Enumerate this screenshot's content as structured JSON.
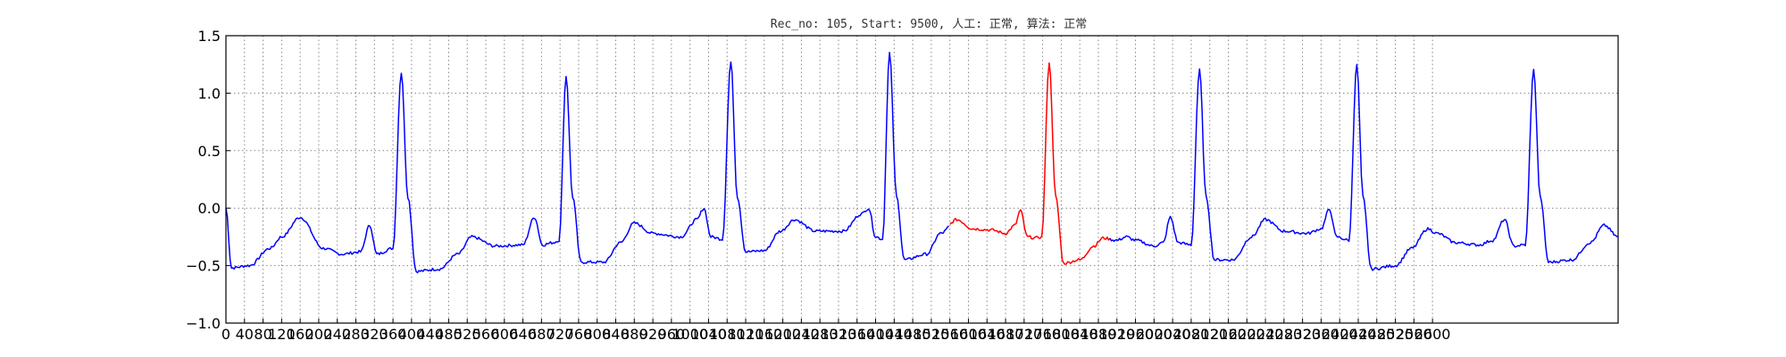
{
  "chart_data": {
    "type": "line",
    "title": "Rec_no: 105, Start: 9500, 人工: 正常, 算法: 正常",
    "xlabel": "",
    "ylabel": "",
    "xlim": [
      0,
      3000
    ],
    "ylim": [
      -1.0,
      1.5
    ],
    "grid": true,
    "yticks": [
      -1.0,
      -0.5,
      0.0,
      0.5,
      1.0,
      1.5
    ],
    "ytick_labels": [
      "−1.0",
      "−0.5",
      "0.0",
      "0.5",
      "1.0",
      "1.5"
    ],
    "xticks": [
      0,
      40,
      80,
      120,
      160,
      200,
      240,
      280,
      320,
      360,
      400,
      440,
      480,
      520,
      560,
      600,
      640,
      680,
      720,
      760,
      800,
      840,
      880,
      920,
      960,
      1000,
      1040,
      1080,
      1120,
      1160,
      1200,
      1240,
      1280,
      1320,
      1360,
      1400,
      1440,
      1480,
      1520,
      1560,
      1600,
      1640,
      1680,
      1720,
      1760,
      1800,
      1840,
      1880,
      1920,
      1960,
      2000,
      2040,
      2080,
      2120,
      2160,
      2200,
      2240,
      2280,
      2320,
      2360,
      2400,
      2440,
      2480,
      2520,
      2560,
      2600
    ],
    "xtick_labels": [
      "0",
      "40",
      "80",
      "120",
      "160",
      "200",
      "240",
      "280",
      "320",
      "360",
      "400",
      "440",
      "480",
      "520",
      "560",
      "600",
      "640",
      "680",
      "720",
      "760",
      "800",
      "840",
      "880",
      "920",
      "960",
      "1000",
      "1040",
      "1080",
      "1120",
      "1160",
      "1200",
      "1240",
      "1280",
      "1320",
      "1360",
      "1400",
      "1440",
      "1480",
      "1520",
      "1560",
      "1600",
      "1640",
      "1680",
      "1720",
      "1760",
      "1800",
      "1840",
      "1880",
      "1920",
      "1960",
      "2000",
      "2040",
      "2080",
      "2120",
      "2160",
      "2200",
      "2240",
      "2280",
      "2320",
      "2360",
      "2400",
      "2440",
      "2480",
      "2520",
      "2560",
      "2600"
    ],
    "colors": {
      "normal": "#0000ff",
      "highlight": "#ff0000",
      "grid": "#888888"
    },
    "beats": [
      {
        "x": 0,
        "y": 0.0
      },
      {
        "x": 12,
        "y": -0.52
      },
      {
        "x": 50,
        "y": -0.5
      },
      {
        "x": 95,
        "y": -0.35
      },
      {
        "x": 120,
        "y": -0.25
      },
      {
        "x": 160,
        "y": -0.08
      },
      {
        "x": 210,
        "y": -0.35
      },
      {
        "x": 250,
        "y": -0.4
      },
      {
        "x": 290,
        "y": -0.38
      },
      {
        "x": 310,
        "y": -0.15
      },
      {
        "x": 325,
        "y": -0.4
      },
      {
        "x": 360,
        "y": -0.35
      },
      {
        "x": 378,
        "y": 1.18
      },
      {
        "x": 392,
        "y": 0.1
      },
      {
        "x": 410,
        "y": -0.55
      },
      {
        "x": 460,
        "y": -0.53
      },
      {
        "x": 500,
        "y": -0.4
      },
      {
        "x": 530,
        "y": -0.25
      },
      {
        "x": 580,
        "y": -0.33
      },
      {
        "x": 640,
        "y": -0.32
      },
      {
        "x": 665,
        "y": -0.08
      },
      {
        "x": 682,
        "y": -0.32
      },
      {
        "x": 705,
        "y": -0.3
      },
      {
        "x": 718,
        "y": -0.28
      },
      {
        "x": 733,
        "y": 1.15
      },
      {
        "x": 747,
        "y": 0.1
      },
      {
        "x": 765,
        "y": -0.47
      },
      {
        "x": 815,
        "y": -0.47
      },
      {
        "x": 850,
        "y": -0.3
      },
      {
        "x": 880,
        "y": -0.13
      },
      {
        "x": 920,
        "y": -0.22
      },
      {
        "x": 980,
        "y": -0.25
      },
      {
        "x": 1015,
        "y": -0.1
      },
      {
        "x": 1030,
        "y": 0.0
      },
      {
        "x": 1045,
        "y": -0.25
      },
      {
        "x": 1070,
        "y": -0.27
      },
      {
        "x": 1088,
        "y": 1.27
      },
      {
        "x": 1102,
        "y": 0.1
      },
      {
        "x": 1120,
        "y": -0.38
      },
      {
        "x": 1160,
        "y": -0.37
      },
      {
        "x": 1195,
        "y": -0.2
      },
      {
        "x": 1225,
        "y": -0.1
      },
      {
        "x": 1270,
        "y": -0.2
      },
      {
        "x": 1330,
        "y": -0.2
      },
      {
        "x": 1370,
        "y": -0.05
      },
      {
        "x": 1385,
        "y": 0.0
      },
      {
        "x": 1400,
        "y": -0.25
      },
      {
        "x": 1415,
        "y": -0.27
      },
      {
        "x": 1430,
        "y": 1.35
      },
      {
        "x": 1445,
        "y": 0.1
      },
      {
        "x": 1462,
        "y": -0.45
      },
      {
        "x": 1510,
        "y": -0.4
      },
      {
        "x": 1540,
        "y": -0.22
      },
      {
        "x": 1575,
        "y": -0.1
      },
      {
        "x": 1610,
        "y": -0.18
      },
      {
        "x": 1650,
        "y": -0.19
      },
      {
        "x": 1680,
        "y": -0.22
      },
      {
        "x": 1700,
        "y": -0.15
      },
      {
        "x": 1712,
        "y": -0.02
      },
      {
        "x": 1727,
        "y": -0.25
      },
      {
        "x": 1745,
        "y": -0.26
      },
      {
        "x": 1758,
        "y": -0.25
      },
      {
        "x": 1774,
        "y": 1.27
      },
      {
        "x": 1788,
        "y": 0.1
      },
      {
        "x": 1805,
        "y": -0.48
      },
      {
        "x": 1840,
        "y": -0.45
      },
      {
        "x": 1870,
        "y": -0.33
      },
      {
        "x": 1890,
        "y": -0.26
      },
      {
        "x": 1920,
        "y": -0.28
      },
      {
        "x": 1940,
        "y": -0.25
      },
      {
        "x": 1960,
        "y": -0.28
      },
      {
        "x": 2000,
        "y": -0.33
      },
      {
        "x": 2020,
        "y": -0.3
      },
      {
        "x": 2035,
        "y": -0.08
      },
      {
        "x": 2052,
        "y": -0.3
      },
      {
        "x": 2080,
        "y": -0.32
      },
      {
        "x": 2098,
        "y": 1.2
      },
      {
        "x": 2112,
        "y": 0.1
      },
      {
        "x": 2130,
        "y": -0.45
      },
      {
        "x": 2170,
        "y": -0.45
      },
      {
        "x": 2210,
        "y": -0.25
      },
      {
        "x": 2240,
        "y": -0.1
      },
      {
        "x": 2280,
        "y": -0.2
      },
      {
        "x": 2330,
        "y": -0.22
      },
      {
        "x": 2360,
        "y": -0.18
      },
      {
        "x": 2378,
        "y": -0.01
      },
      {
        "x": 2393,
        "y": -0.25
      },
      {
        "x": 2420,
        "y": -0.28
      },
      {
        "x": 2437,
        "y": 1.25
      },
      {
        "x": 2450,
        "y": 0.1
      },
      {
        "x": 2468,
        "y": -0.53
      },
      {
        "x": 2520,
        "y": -0.5
      },
      {
        "x": 2555,
        "y": -0.35
      },
      {
        "x": 2590,
        "y": -0.18
      }
    ],
    "series_extra": [
      {
        "x": 2610,
        "y": -0.22
      },
      {
        "x": 2650,
        "y": -0.3
      },
      {
        "x": 2700,
        "y": -0.32
      },
      {
        "x": 2730,
        "y": -0.28
      },
      {
        "x": 2755,
        "y": -0.1
      },
      {
        "x": 2775,
        "y": -0.33
      },
      {
        "x": 2800,
        "y": -0.32
      },
      {
        "x": 2818,
        "y": 1.2
      },
      {
        "x": 2832,
        "y": 0.1
      },
      {
        "x": 2850,
        "y": -0.47
      },
      {
        "x": 2900,
        "y": -0.45
      },
      {
        "x": 2940,
        "y": -0.3
      },
      {
        "x": 2970,
        "y": -0.15
      },
      {
        "x": 3000,
        "y": -0.25
      }
    ],
    "highlight_range": [
      1560,
      1905
    ]
  }
}
